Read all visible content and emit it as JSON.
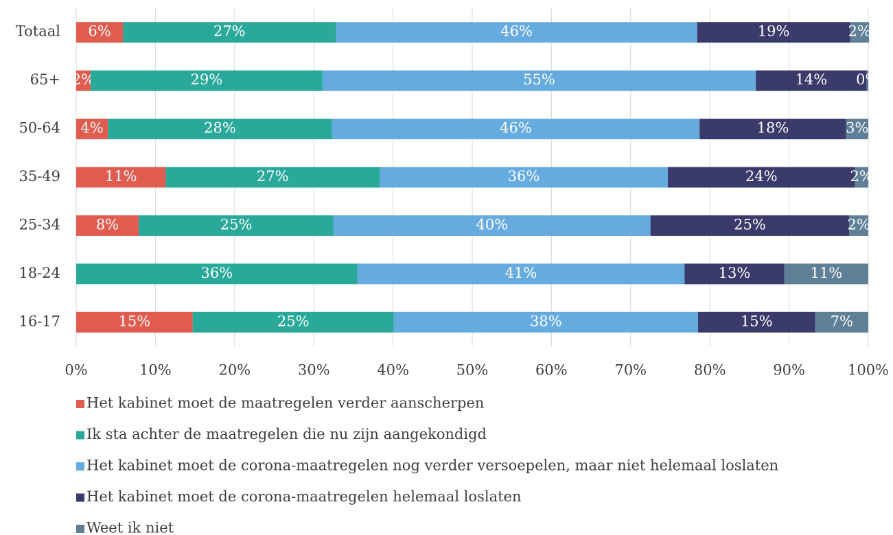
{
  "chart_data": {
    "type": "stacked-barh",
    "categories": [
      "Totaal",
      "65+",
      "50-64",
      "35-49",
      "25-34",
      "18-24",
      "16-17"
    ],
    "series": [
      {
        "name": "Het kabinet moet de maatregelen verder aanscherpen",
        "color": "#e05c4f",
        "values": [
          5.9,
          1.8,
          4.0,
          11.3,
          7.9,
          0,
          14.7
        ],
        "value_labels": [
          "6%",
          "2%",
          "4%",
          "11%",
          "8%",
          null,
          "15%"
        ]
      },
      {
        "name": "Ik sta achter de maatregelen die nu zijn aangekondigd",
        "color": "#2aa89a",
        "values": [
          26.9,
          29.3,
          28.3,
          27.0,
          24.6,
          35.5,
          25.4
        ],
        "value_labels": [
          "27%",
          "29%",
          "28%",
          "27%",
          "25%",
          "36%",
          "25%"
        ]
      },
      {
        "name": "Het kabinet moet de corona-maatregelen nog verder versoepelen, maar niet helemaal loslaten",
        "color": "#66abe0",
        "values": [
          45.6,
          54.7,
          46.4,
          36.4,
          40.0,
          41.3,
          38.4
        ],
        "value_labels": [
          "46%",
          "55%",
          "46%",
          "36%",
          "40%",
          "41%",
          "38%"
        ]
      },
      {
        "name": "Het kabinet moet de corona-maatregelen helemaal loslaten",
        "color": "#3a3a6b",
        "values": [
          19.3,
          14.0,
          18.5,
          23.6,
          25.1,
          12.6,
          14.8
        ],
        "value_labels": [
          "19%",
          "14%",
          "18%",
          "24%",
          "25%",
          "13%",
          "15%"
        ]
      },
      {
        "name": "Weet ik niet",
        "color": "#5f7f96",
        "values": [
          2.4,
          0.2,
          2.8,
          1.7,
          2.4,
          10.6,
          6.7
        ],
        "value_labels": [
          "2%",
          "0%",
          "3%",
          "2%",
          "2%",
          "11%",
          "7%"
        ]
      }
    ],
    "xlim": [
      0,
      100
    ],
    "xticks": [
      {
        "value": 0,
        "label": "0%"
      },
      {
        "value": 10,
        "label": "10%"
      },
      {
        "value": 20,
        "label": "20%"
      },
      {
        "value": 30,
        "label": "30%"
      },
      {
        "value": 40,
        "label": "40%"
      },
      {
        "value": 50,
        "label": "50%"
      },
      {
        "value": 60,
        "label": "60%"
      },
      {
        "value": 70,
        "label": "70%"
      },
      {
        "value": 80,
        "label": "80%"
      },
      {
        "value": 90,
        "label": "90%"
      },
      {
        "value": 100,
        "label": "100%"
      }
    ],
    "grid": true,
    "legend": "bottom"
  }
}
